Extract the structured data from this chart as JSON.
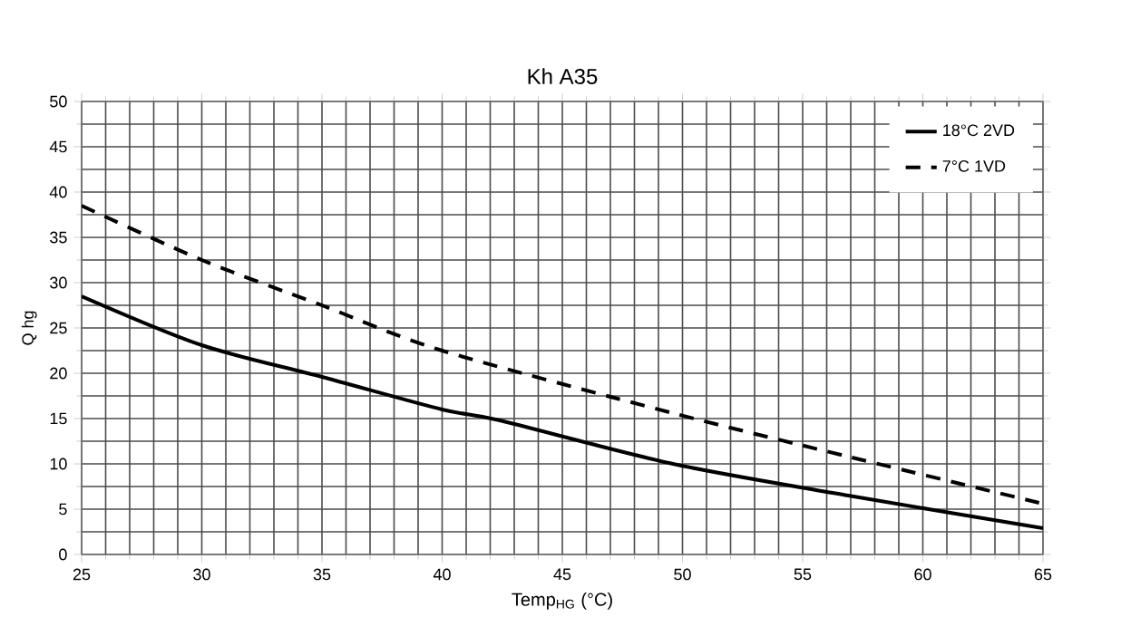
{
  "chart_data": {
    "type": "line",
    "title": "Kh A35",
    "xlabel": "Temp$_{HG}$ (°C)",
    "ylabel": "Q hg",
    "xlim": [
      25,
      65
    ],
    "xticks": [
      25,
      30,
      35,
      40,
      45,
      50,
      55,
      60,
      65
    ],
    "ylim": [
      0,
      50
    ],
    "yticks": [
      0,
      5,
      10,
      15,
      20,
      25,
      30,
      35,
      40,
      45,
      50
    ],
    "grid": true,
    "legend": "top right",
    "series": [
      {
        "name": "18°C 2VD",
        "color": "#000000",
        "line_style": "solid",
        "x": [
          25,
          30,
          35,
          40,
          42.4,
          49.6,
          56.9,
          65
        ],
        "values": [
          28.5,
          23.1,
          19.6,
          16,
          14.8,
          10,
          6.5,
          2.9
        ]
      },
      {
        "name": "7°C 1VD",
        "color": "#000000",
        "line_style": "dashed",
        "x": [
          25,
          30,
          35,
          40,
          49.6,
          56.9,
          65
        ],
        "values": [
          38.5,
          32.5,
          27.5,
          22.5,
          15.6,
          10.8,
          5.6
        ]
      }
    ]
  }
}
